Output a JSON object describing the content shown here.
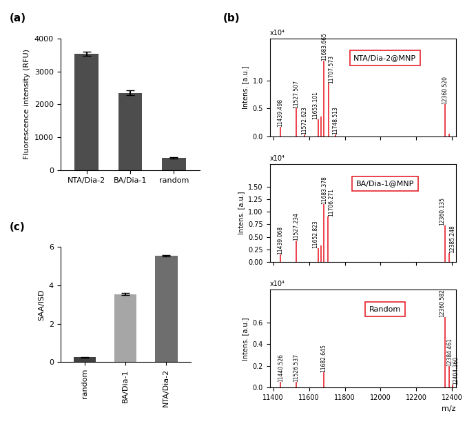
{
  "chart_data": [
    {
      "type": "bar",
      "panel": "(a)",
      "categories": [
        "NTA/Dia-2",
        "BA/Dia-1",
        "random"
      ],
      "values": [
        3530,
        2350,
        380
      ],
      "errors": [
        70,
        70,
        20
      ],
      "color": "#4d4d4d",
      "ylabel": "Fluorescence intensity (RFU)",
      "ylim": [
        0,
        4000
      ],
      "yticks": [
        0,
        1000,
        2000,
        3000,
        4000
      ]
    },
    {
      "type": "stem",
      "panel": "(b)",
      "title": "NTA/Dia-2@MNP",
      "color": "#e8202a",
      "ylabel": "Intens. [a.u.]",
      "y_multiplier_label": "x10⁴",
      "x": [
        11439.498,
        11527.507,
        11572.623,
        11653.101,
        11668,
        11683.665,
        11707.573,
        11748.513,
        12360.52,
        12385
      ],
      "values": [
        0.17,
        0.5,
        0.03,
        0.3,
        0.35,
        1.35,
        0.95,
        0.04,
        0.58,
        0.05
      ],
      "peak_labels": [
        "11439.498",
        "11527.507",
        "11572.623",
        "11653.101",
        null,
        "11683.665",
        "11707.573",
        "11748.513",
        "12360.520",
        null
      ],
      "xlim": [
        11380,
        12420
      ],
      "xticks": [
        11400,
        11600,
        11800,
        12000,
        12200,
        12400
      ],
      "ylim": [
        0,
        1.75
      ],
      "yticks": [
        {
          "value": 0,
          "label": "0.0"
        },
        {
          "value": 0.5,
          "label": "0.5"
        },
        {
          "value": 1,
          "label": "1.0"
        }
      ],
      "tick_labels": "y"
    },
    {
      "type": "stem",
      "title": "BA/Dia-1@MNP",
      "color": "#e8202a",
      "ylabel": "Intens. [a.u.]",
      "y_multiplier_label": "x10⁴",
      "x": [
        11439.068,
        11527.234,
        11652.823,
        11668,
        11683.378,
        11706.271,
        12360.135,
        12385.248
      ],
      "values": [
        0.15,
        0.42,
        0.28,
        0.33,
        1.15,
        0.9,
        0.73,
        0.18
      ],
      "peak_labels": [
        "11439.068",
        "11527.234",
        "11652.823",
        null,
        "11683.378",
        "11706.271",
        "12360.135",
        "12385.248"
      ],
      "xlim": [
        11380,
        12420
      ],
      "xticks": [
        11400,
        11600,
        11800,
        12000,
        12200,
        12400
      ],
      "ylim": [
        0,
        1.95
      ],
      "yticks": [
        {
          "value": 0,
          "label": "0.00"
        },
        {
          "value": 0.25,
          "label": "0.25"
        },
        {
          "value": 0.5,
          "label": "0.50"
        },
        {
          "value": 0.75,
          "label": "0.75"
        },
        {
          "value": 1,
          "label": "1.00"
        },
        {
          "value": 1.25,
          "label": "1.25"
        },
        {
          "value": 1.5,
          "label": "1.50"
        }
      ],
      "tick_labels": "y"
    },
    {
      "type": "stem",
      "title": "Random",
      "color": "#e8202a",
      "ylabel": "Intens. [a.u.]",
      "y_multiplier_label": "x10⁴",
      "xlabel": "m/z",
      "x": [
        11440.526,
        11526.537,
        11682.645,
        12360.582,
        12384.461,
        12404.36
      ],
      "values": [
        0.05,
        0.05,
        0.14,
        0.65,
        0.2,
        0.03
      ],
      "peak_labels": [
        "11440.526",
        "11526.537",
        "11682.645",
        "12360.582",
        "12384.461",
        "12404.360"
      ],
      "xlim": [
        11380,
        12420
      ],
      "xticks": [
        11400,
        11600,
        11800,
        12000,
        12200,
        12400
      ],
      "ylim": [
        0,
        0.9
      ],
      "yticks": [
        {
          "value": 0,
          "label": "0.0"
        },
        {
          "value": 0.2,
          "label": "0.2"
        },
        {
          "value": 0.4,
          "label": "0.4"
        },
        {
          "value": 0.6,
          "label": "0.6"
        }
      ]
    },
    {
      "type": "bar",
      "panel": "(c)",
      "categories": [
        "random",
        "BA/Dia-1",
        "NTA/Dia-2"
      ],
      "values": [
        0.25,
        3.55,
        5.55
      ],
      "errors": [
        0.02,
        0.06,
        0.03
      ],
      "colors": [
        "#404040",
        "#a6a6a6",
        "#6e6e6e"
      ],
      "ylabel": "SAA/ISD",
      "ylim": [
        0,
        6
      ],
      "yticks": [
        0,
        2,
        4,
        6
      ]
    }
  ]
}
